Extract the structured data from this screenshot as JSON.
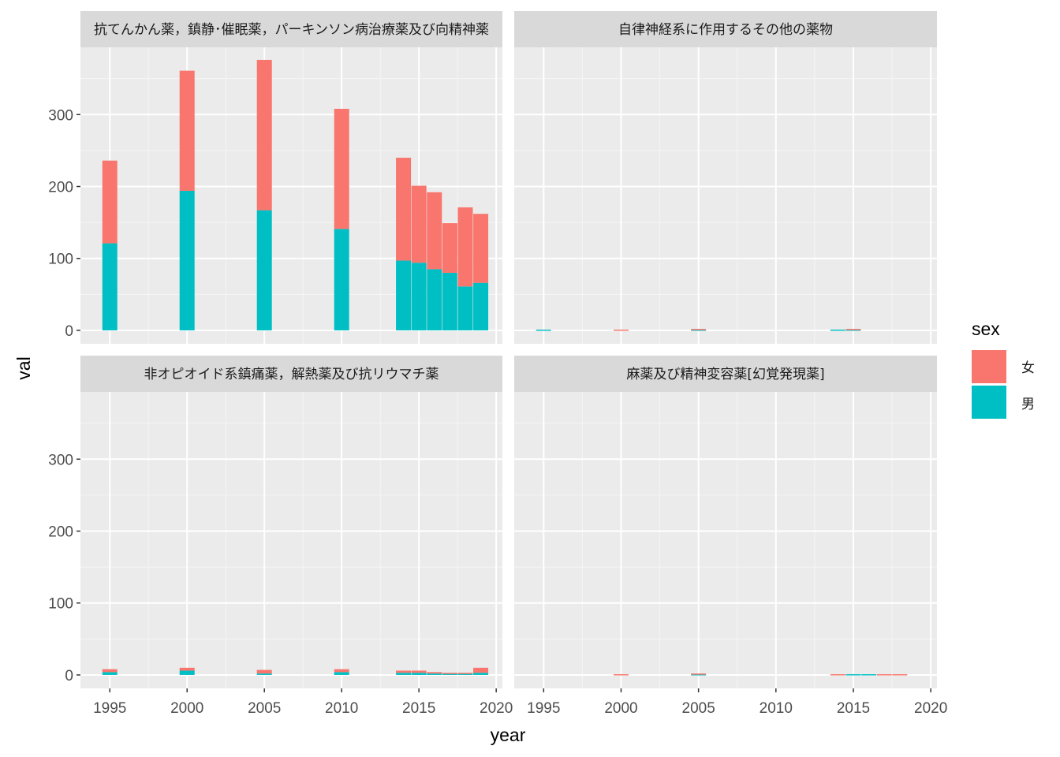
{
  "chart_data": {
    "type": "bar",
    "stacked": true,
    "facet_layout": "2x2",
    "xlabel": "year",
    "ylabel": "val",
    "x_ticks": [
      1995,
      2000,
      2005,
      2010,
      2015,
      2020
    ],
    "y_ticks": [
      0,
      100,
      200,
      300
    ],
    "xlim": [
      1993.1,
      2020.4
    ],
    "ylim": [
      -18.7,
      393.5
    ],
    "grid": true,
    "legend": {
      "title": "sex",
      "position": "right",
      "entries": [
        {
          "label": "女",
          "color": "#F8766D"
        },
        {
          "label": "男",
          "color": "#00BFC4"
        }
      ]
    },
    "panels": [
      {
        "strip": "抗てんかん薬，鎮静･催眠薬，パーキンソン病治療薬及び向精神薬",
        "years": [
          1995,
          2000,
          2005,
          2010,
          2014,
          2015,
          2016,
          2017,
          2018,
          2019
        ],
        "series": [
          {
            "name": "男",
            "values": [
              121,
              194,
              167,
              141,
              97,
              94,
              85,
              80,
              61,
              66
            ]
          },
          {
            "name": "女",
            "values": [
              115,
              167,
              209,
              167,
              143,
              107,
              107,
              69,
              110,
              96
            ]
          }
        ]
      },
      {
        "strip": "自律神経系に作用するその他の薬物",
        "years": [
          1995,
          2000,
          2005,
          2010,
          2014,
          2015,
          2016,
          2017,
          2018,
          2019
        ],
        "series": [
          {
            "name": "男",
            "values": [
              1,
              0,
              1,
              0,
              1,
              1,
              0,
              0,
              0,
              0
            ]
          },
          {
            "name": "女",
            "values": [
              0,
              1,
              1,
              0,
              0,
              1,
              0,
              0,
              0,
              0
            ]
          }
        ]
      },
      {
        "strip": "非オピオイド系鎮痛薬，解熱薬及び抗リウマチ薬",
        "years": [
          1995,
          2000,
          2005,
          2010,
          2014,
          2015,
          2016,
          2017,
          2018,
          2019
        ],
        "series": [
          {
            "name": "男",
            "values": [
              4,
              6,
              2,
              4,
              3,
              3,
              2,
              2,
              2,
              3
            ]
          },
          {
            "name": "女",
            "values": [
              4,
              4,
              5,
              4,
              3,
              3,
              2,
              1,
              1,
              7
            ]
          }
        ]
      },
      {
        "strip": "麻薬及び精神変容薬[幻覚発現薬]",
        "years": [
          1995,
          2000,
          2005,
          2010,
          2014,
          2015,
          2016,
          2017,
          2018,
          2019
        ],
        "series": [
          {
            "name": "男",
            "values": [
              0,
              0,
              1,
              0,
              0,
              1,
              1,
              0,
              0,
              0
            ]
          },
          {
            "name": "女",
            "values": [
              0,
              1,
              1,
              0,
              1,
              0,
              0,
              1,
              1,
              0
            ]
          }
        ]
      }
    ]
  }
}
